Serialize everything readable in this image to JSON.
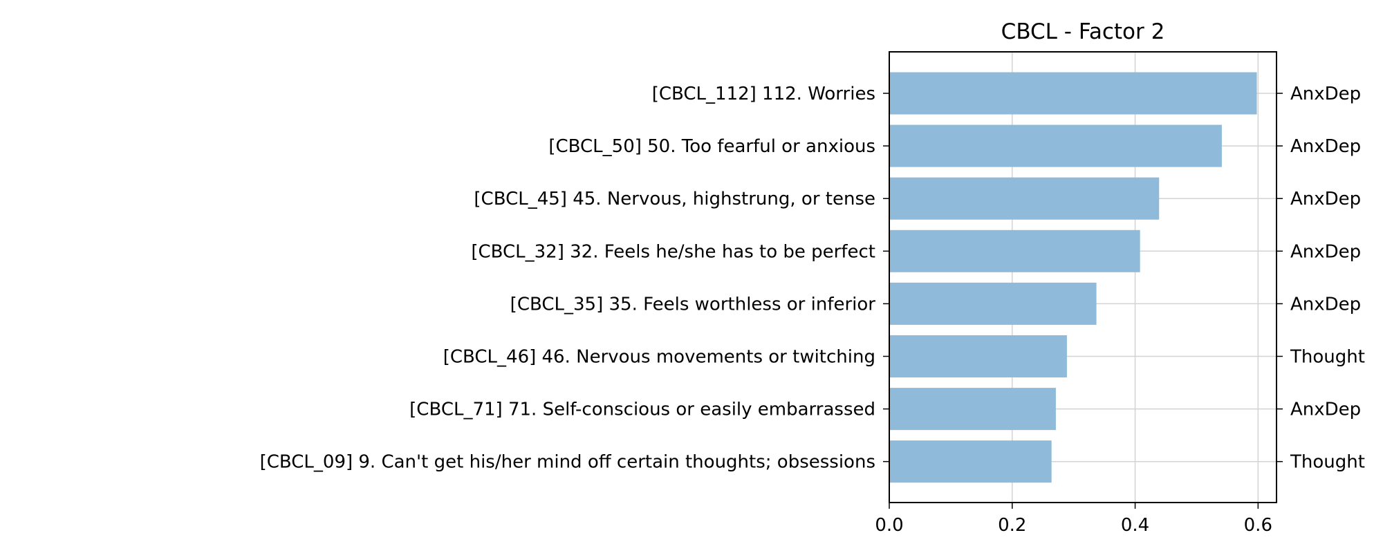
{
  "chart_data": {
    "type": "bar",
    "orientation": "horizontal",
    "title": "CBCL - Factor 2",
    "xlabel": "",
    "ylabel": "",
    "xlim": [
      0,
      0.63
    ],
    "xticks": [
      0.0,
      0.2,
      0.4,
      0.6
    ],
    "xtick_labels": [
      "0.0",
      "0.2",
      "0.4",
      "0.6"
    ],
    "grid": true,
    "bar_color": "#8fbad9",
    "grid_color": "#d3d3d3",
    "categories": [
      "[CBCL_112] 112. Worries",
      "[CBCL_50] 50. Too fearful or anxious",
      "[CBCL_45] 45. Nervous, highstrung, or tense",
      "[CBCL_32] 32. Feels he/she has to be perfect",
      "[CBCL_35] 35. Feels worthless or inferior",
      "[CBCL_46] 46. Nervous movements or twitching",
      "[CBCL_71] 71. Self-conscious or easily embarrassed",
      "[CBCL_09] 9. Can't get his/her mind off certain thoughts; obsessions"
    ],
    "values": [
      0.598,
      0.541,
      0.439,
      0.408,
      0.337,
      0.289,
      0.271,
      0.264
    ],
    "right_labels": [
      "AnxDep",
      "AnxDep",
      "AnxDep",
      "AnxDep",
      "AnxDep",
      "Thought",
      "AnxDep",
      "Thought"
    ]
  }
}
